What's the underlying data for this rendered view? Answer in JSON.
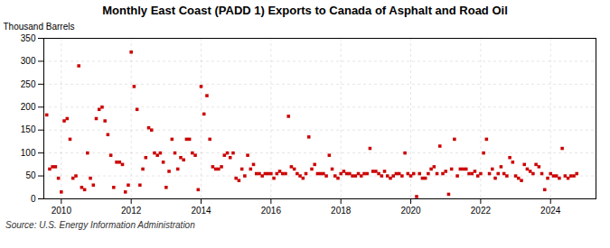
{
  "chart_data": {
    "type": "scatter",
    "title": "Monthly East Coast (PADD 1) Exports to Canada of Asphalt and Road Oil",
    "ylabel": "Thousand Barrels",
    "source": "Source: U.S. Energy Information Administration",
    "color": "#cc0000",
    "marker": "square",
    "grid": true,
    "xlim": [
      2009.5,
      2025.3
    ],
    "xticks": [
      2010,
      2012,
      2014,
      2016,
      2018,
      2020,
      2022,
      2024
    ],
    "ylim": [
      0,
      350
    ],
    "yticks": [
      0,
      50,
      100,
      150,
      200,
      250,
      300,
      350
    ],
    "x": [
      2009.583,
      2009.667,
      2009.75,
      2009.833,
      2009.917,
      2010.0,
      2010.083,
      2010.167,
      2010.25,
      2010.333,
      2010.417,
      2010.5,
      2010.583,
      2010.667,
      2010.75,
      2010.833,
      2010.917,
      2011.0,
      2011.083,
      2011.167,
      2011.25,
      2011.333,
      2011.417,
      2011.5,
      2011.583,
      2011.667,
      2011.75,
      2011.833,
      2011.917,
      2012.0,
      2012.083,
      2012.167,
      2012.25,
      2012.333,
      2012.417,
      2012.5,
      2012.583,
      2012.667,
      2012.75,
      2012.833,
      2012.917,
      2013.0,
      2013.083,
      2013.167,
      2013.25,
      2013.333,
      2013.417,
      2013.5,
      2013.583,
      2013.667,
      2013.75,
      2013.833,
      2013.917,
      2014.0,
      2014.083,
      2014.167,
      2014.25,
      2014.333,
      2014.417,
      2014.5,
      2014.583,
      2014.667,
      2014.75,
      2014.833,
      2014.917,
      2015.0,
      2015.083,
      2015.167,
      2015.25,
      2015.333,
      2015.417,
      2015.5,
      2015.583,
      2015.667,
      2015.75,
      2015.833,
      2015.917,
      2016.0,
      2016.083,
      2016.167,
      2016.25,
      2016.333,
      2016.417,
      2016.5,
      2016.583,
      2016.667,
      2016.75,
      2016.833,
      2016.917,
      2017.0,
      2017.083,
      2017.167,
      2017.25,
      2017.333,
      2017.417,
      2017.5,
      2017.583,
      2017.667,
      2017.75,
      2017.833,
      2017.917,
      2018.0,
      2018.083,
      2018.167,
      2018.25,
      2018.333,
      2018.417,
      2018.5,
      2018.583,
      2018.667,
      2018.75,
      2018.833,
      2018.917,
      2019.0,
      2019.083,
      2019.167,
      2019.25,
      2019.333,
      2019.417,
      2019.5,
      2019.583,
      2019.667,
      2019.75,
      2019.833,
      2019.917,
      2020.0,
      2020.083,
      2020.167,
      2020.25,
      2020.333,
      2020.417,
      2020.5,
      2020.583,
      2020.667,
      2020.75,
      2020.833,
      2020.917,
      2021.0,
      2021.083,
      2021.167,
      2021.25,
      2021.333,
      2021.417,
      2021.5,
      2021.583,
      2021.667,
      2021.75,
      2021.833,
      2021.917,
      2022.0,
      2022.083,
      2022.167,
      2022.25,
      2022.333,
      2022.417,
      2022.5,
      2022.583,
      2022.667,
      2022.75,
      2022.833,
      2022.917,
      2023.0,
      2023.083,
      2023.167,
      2023.25,
      2023.333,
      2023.417,
      2023.5,
      2023.583,
      2023.667,
      2023.75,
      2023.833,
      2023.917,
      2024.0,
      2024.083,
      2024.167,
      2024.25,
      2024.333,
      2024.417,
      2024.5,
      2024.583,
      2024.667,
      2024.75
    ],
    "values": [
      183,
      65,
      70,
      70,
      45,
      15,
      170,
      175,
      130,
      45,
      50,
      290,
      25,
      20,
      100,
      45,
      30,
      175,
      195,
      200,
      170,
      140,
      95,
      25,
      80,
      80,
      75,
      15,
      30,
      320,
      245,
      195,
      30,
      65,
      90,
      155,
      150,
      100,
      95,
      100,
      80,
      25,
      60,
      130,
      100,
      65,
      90,
      85,
      130,
      130,
      100,
      95,
      20,
      245,
      185,
      225,
      130,
      70,
      65,
      65,
      70,
      95,
      100,
      90,
      100,
      45,
      40,
      65,
      50,
      95,
      65,
      75,
      55,
      55,
      50,
      55,
      55,
      55,
      45,
      55,
      60,
      55,
      55,
      180,
      70,
      65,
      55,
      50,
      45,
      55,
      135,
      65,
      75,
      55,
      55,
      55,
      50,
      95,
      65,
      50,
      45,
      55,
      60,
      55,
      55,
      50,
      50,
      55,
      50,
      55,
      55,
      110,
      60,
      60,
      55,
      50,
      60,
      50,
      45,
      50,
      55,
      55,
      50,
      100,
      55,
      50,
      55,
      5,
      55,
      45,
      45,
      55,
      65,
      70,
      55,
      115,
      55,
      60,
      10,
      65,
      130,
      50,
      65,
      65,
      65,
      55,
      55,
      60,
      50,
      55,
      100,
      130,
      55,
      65,
      45,
      55,
      70,
      55,
      50,
      90,
      80,
      50,
      45,
      40,
      75,
      65,
      60,
      55,
      75,
      70,
      55,
      20,
      45,
      55,
      50,
      50,
      45,
      110,
      50,
      45,
      50,
      50,
      55
    ]
  }
}
